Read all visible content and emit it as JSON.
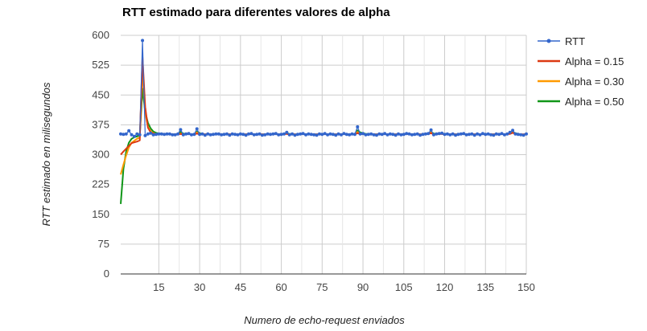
{
  "chart_data": {
    "type": "line",
    "title": "RTT estimado para diferentes valores de alpha",
    "xlabel": "Numero de echo-request enviados",
    "ylabel": "RTT estimado en milisegundos",
    "xlim": [
      1,
      150
    ],
    "ylim": [
      0,
      600
    ],
    "x_ticks": [
      15,
      30,
      45,
      60,
      75,
      90,
      105,
      120,
      135,
      150
    ],
    "y_ticks": [
      0,
      75,
      150,
      225,
      300,
      375,
      450,
      525,
      600
    ],
    "grid": true,
    "legend_position": "right",
    "series": [
      {
        "name": "RTT",
        "color": "#3366cc",
        "markers": true,
        "values": [
          352,
          351,
          352,
          360,
          350,
          346,
          352,
          350,
          587,
          348,
          352,
          354,
          350,
          351,
          352,
          352,
          351,
          352,
          352,
          350,
          350,
          352,
          363,
          350,
          352,
          353,
          350,
          351,
          365,
          351,
          352,
          349,
          352,
          350,
          351,
          352,
          352,
          350,
          351,
          352,
          349,
          352,
          351,
          350,
          352,
          351,
          349,
          352,
          353,
          350,
          351,
          352,
          349,
          350,
          352,
          351,
          352,
          353,
          350,
          351,
          352,
          356,
          350,
          352,
          349,
          351,
          352,
          353,
          350,
          352,
          351,
          350,
          349,
          352,
          351,
          353,
          350,
          352,
          351,
          349,
          352,
          350,
          353,
          351,
          350,
          352,
          351,
          370,
          352,
          353,
          350,
          351,
          352,
          350,
          349,
          352,
          351,
          353,
          350,
          352,
          351,
          349,
          352,
          350,
          351,
          353,
          352,
          350,
          351,
          352,
          349,
          351,
          352,
          353,
          362,
          350,
          352,
          353,
          354,
          351,
          352,
          350,
          352,
          349,
          351,
          352,
          353,
          350,
          351,
          352,
          349,
          352,
          350,
          353,
          351,
          352,
          350,
          349,
          352,
          351,
          353,
          350,
          352,
          356,
          361,
          352,
          351,
          350,
          349,
          352
        ]
      },
      {
        "name": "Alpha = 0.15",
        "color": "#dc3912",
        "markers": false,
        "values": [
          300,
          308,
          315,
          322,
          329,
          331,
          333,
          336,
          545,
          420,
          368,
          356,
          353,
          352,
          352,
          352,
          352,
          352,
          352,
          351,
          351,
          351,
          352,
          351,
          352,
          352,
          351,
          351,
          353,
          351,
          352,
          351,
          352,
          351,
          351,
          352,
          352,
          351,
          351,
          352,
          351,
          352,
          351,
          351,
          352,
          351,
          351,
          352,
          352,
          351,
          351,
          352,
          351,
          351,
          352,
          351,
          352,
          352,
          351,
          351,
          352,
          352,
          351,
          352,
          351,
          351,
          352,
          352,
          351,
          352,
          351,
          351,
          351,
          352,
          351,
          352,
          351,
          352,
          351,
          351,
          352,
          351,
          352,
          351,
          351,
          352,
          351,
          354,
          352,
          352,
          351,
          351,
          352,
          351,
          351,
          352,
          351,
          352,
          351,
          352,
          351,
          351,
          352,
          351,
          351,
          352,
          352,
          351,
          351,
          352,
          351,
          351,
          352,
          352,
          354,
          351,
          352,
          352,
          352,
          351,
          352,
          351,
          352,
          351,
          351,
          352,
          352,
          351,
          351,
          352,
          351,
          352,
          351,
          352,
          351,
          352,
          351,
          351,
          352,
          351,
          352,
          351,
          352,
          352,
          355,
          352,
          351,
          351,
          351,
          352
        ]
      },
      {
        "name": "Alpha = 0.30",
        "color": "#ff9900",
        "markers": false,
        "values": [
          250,
          275,
          298,
          318,
          330,
          335,
          340,
          343,
          515,
          405,
          370,
          359,
          354,
          352,
          352,
          352,
          352,
          352,
          352,
          351,
          351,
          351,
          353,
          351,
          352,
          352,
          351,
          351,
          356,
          351,
          352,
          351,
          352,
          351,
          351,
          352,
          352,
          351,
          351,
          352,
          351,
          352,
          351,
          351,
          352,
          351,
          351,
          352,
          352,
          351,
          351,
          352,
          351,
          351,
          352,
          351,
          352,
          352,
          351,
          351,
          352,
          353,
          351,
          352,
          351,
          351,
          352,
          352,
          351,
          352,
          351,
          351,
          351,
          352,
          351,
          352,
          351,
          352,
          351,
          351,
          352,
          351,
          352,
          351,
          351,
          352,
          351,
          357,
          352,
          352,
          351,
          351,
          352,
          351,
          351,
          352,
          351,
          352,
          351,
          352,
          351,
          351,
          352,
          351,
          351,
          352,
          352,
          351,
          351,
          352,
          351,
          351,
          352,
          352,
          356,
          351,
          352,
          352,
          353,
          351,
          352,
          351,
          352,
          351,
          351,
          352,
          352,
          351,
          351,
          352,
          351,
          352,
          351,
          352,
          351,
          352,
          351,
          351,
          352,
          351,
          352,
          351,
          352,
          353,
          357,
          352,
          351,
          351,
          351,
          352
        ]
      },
      {
        "name": "Alpha = 0.50",
        "color": "#109618",
        "markers": false,
        "values": [
          176,
          264,
          308,
          330,
          340,
          344,
          346,
          348,
          466,
          407,
          380,
          366,
          358,
          355,
          353,
          353,
          352,
          352,
          352,
          351,
          351,
          351,
          357,
          353,
          352,
          352,
          351,
          351,
          358,
          354,
          352,
          351,
          352,
          351,
          351,
          352,
          352,
          351,
          351,
          352,
          351,
          352,
          351,
          351,
          352,
          351,
          351,
          352,
          352,
          351,
          351,
          352,
          351,
          351,
          352,
          351,
          352,
          352,
          351,
          351,
          352,
          354,
          352,
          352,
          351,
          351,
          352,
          352,
          351,
          352,
          351,
          351,
          351,
          352,
          351,
          352,
          351,
          352,
          351,
          351,
          352,
          351,
          352,
          351,
          351,
          352,
          351,
          361,
          356,
          354,
          352,
          352,
          352,
          351,
          351,
          352,
          351,
          352,
          351,
          352,
          351,
          351,
          352,
          351,
          351,
          352,
          352,
          351,
          351,
          352,
          351,
          351,
          352,
          352,
          357,
          353,
          352,
          352,
          353,
          352,
          352,
          351,
          352,
          351,
          351,
          352,
          352,
          351,
          351,
          352,
          351,
          352,
          351,
          352,
          351,
          352,
          351,
          351,
          352,
          351,
          352,
          351,
          352,
          354,
          357,
          354,
          352,
          351,
          350,
          351
        ]
      }
    ]
  }
}
